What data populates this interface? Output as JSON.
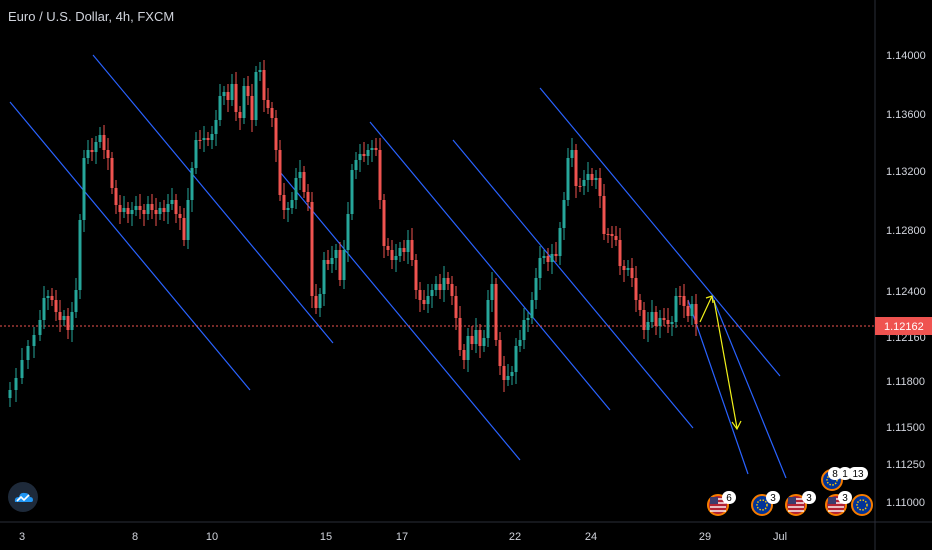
{
  "header": {
    "title": "Euro / U.S. Dollar, 4h, FXCM"
  },
  "chart_data": {
    "type": "candlestick",
    "symbol": "Euro / U.S. Dollar",
    "interval": "4h",
    "source": "FXCM",
    "y_ticks": [
      "1.14000",
      "1.13600",
      "1.13200",
      "1.12800",
      "1.12400",
      "1.11800",
      "1.11500",
      "1.11250",
      "1.11000"
    ],
    "x_ticks": [
      "3",
      "8",
      "10",
      "15",
      "17",
      "22",
      "24",
      "29",
      "Jul"
    ],
    "current_price": "1.12162",
    "partial_tick": "1.12160",
    "event_badges": [
      {
        "count": "6"
      },
      {
        "count": "3"
      },
      {
        "count": "3"
      },
      {
        "count": "3"
      },
      {
        "count": "8"
      },
      {
        "count": "1"
      },
      {
        "count": "13"
      }
    ],
    "colors": {
      "up": "#26a69a",
      "down": "#ef5350",
      "channel": "#2962ff",
      "projection": "#f2f21a",
      "price_line": "#ef5350",
      "background": "#000000"
    }
  }
}
